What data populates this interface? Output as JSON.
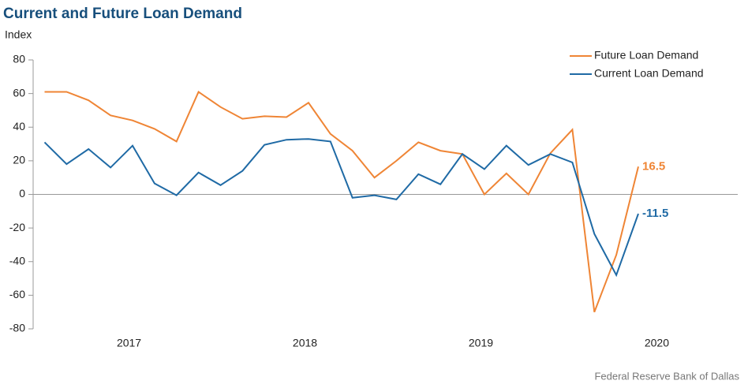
{
  "chart_data": {
    "type": "line",
    "title": "Current and Future Loan Demand",
    "y_label": "Index",
    "source": "Federal Reserve Bank of Dallas",
    "x": [
      2017.02,
      2017.145,
      2017.27,
      2017.395,
      2017.52,
      2017.645,
      2017.77,
      2017.895,
      2018.02,
      2018.145,
      2018.27,
      2018.395,
      2018.52,
      2018.645,
      2018.77,
      2018.895,
      2019.02,
      2019.145,
      2019.27,
      2019.395,
      2019.52,
      2019.645,
      2019.77,
      2019.895,
      2020.02,
      2020.145,
      2020.27,
      2020.395
    ],
    "series": [
      {
        "name": "Future Loan Demand",
        "color": "#ef8535",
        "values": [
          61,
          61,
          56,
          47,
          44,
          39,
          31.5,
          61,
          52,
          45,
          46.5,
          46,
          54.5,
          36,
          26,
          10,
          20,
          31,
          26,
          24,
          0,
          12.5,
          0,
          24.5,
          38.5,
          -70,
          -36,
          16.5
        ]
      },
      {
        "name": "Current Loan Demand",
        "color": "#1f6aa5",
        "values": [
          31,
          18,
          27,
          16,
          29,
          6.5,
          -0.5,
          13,
          5.5,
          14,
          29.5,
          32.5,
          33,
          31.5,
          -2,
          -0.5,
          -3,
          12,
          6,
          24,
          15,
          29,
          17.5,
          24,
          19,
          -23.5,
          -48,
          -11.5
        ]
      }
    ],
    "xlim": [
      2016.955,
      2020.96
    ],
    "xticks": [
      {
        "value": 2017.5,
        "label": "2017"
      },
      {
        "value": 2018.5,
        "label": "2018"
      },
      {
        "value": 2019.5,
        "label": "2019"
      },
      {
        "value": 2020.5,
        "label": "2020"
      }
    ],
    "ylim": [
      -80,
      80
    ],
    "yticks": [
      -80,
      -60,
      -40,
      -20,
      0,
      20,
      40,
      60,
      80
    ],
    "legend": "top-right"
  }
}
